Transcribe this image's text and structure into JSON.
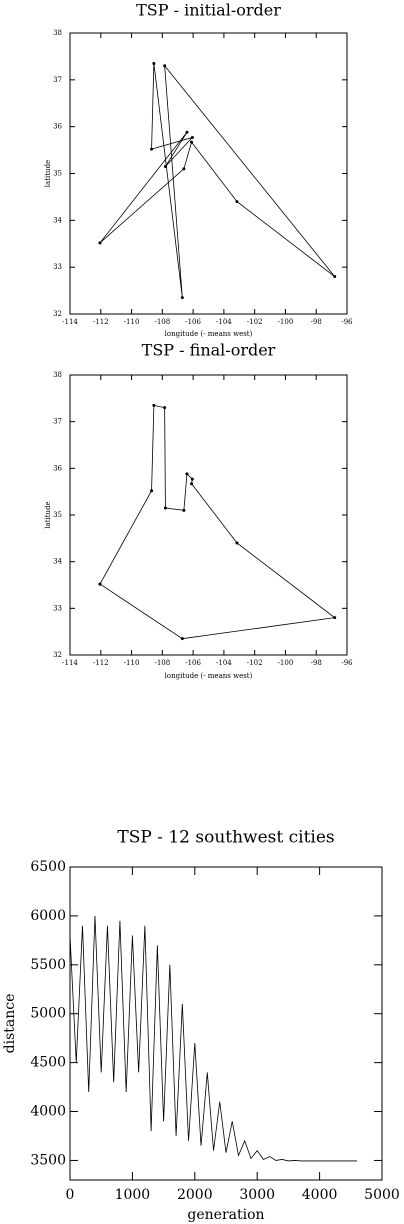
{
  "chart_data": [
    {
      "type": "line",
      "title": "TSP - initial-order",
      "x_label": "longitude (- means west)",
      "y_label": "latitude",
      "xlim": [
        -114,
        -96
      ],
      "ylim": [
        32,
        38
      ],
      "xticks": [
        -114,
        -112,
        -110,
        -108,
        -106,
        -104,
        -102,
        -100,
        -98,
        -96
      ],
      "yticks": [
        32,
        33,
        34,
        35,
        36,
        37,
        38
      ],
      "markers": true,
      "series": [
        {
          "color": "#000000",
          "x": [
            -112.05,
            -106.4,
            -107.8,
            -106.05,
            -108.7,
            -108.55,
            -106.7,
            -107.85,
            -96.8,
            -103.15,
            -106.1,
            -106.6,
            -112.05
          ],
          "values": [
            33.52,
            35.88,
            35.15,
            35.77,
            35.52,
            37.35,
            32.35,
            37.3,
            32.8,
            34.4,
            35.67,
            35.1,
            33.52
          ]
        }
      ]
    },
    {
      "type": "line",
      "title": "TSP - final-order",
      "x_label": "longitude (- means west)",
      "y_label": "latitude",
      "xlim": [
        -114,
        -96
      ],
      "ylim": [
        32,
        38
      ],
      "xticks": [
        -114,
        -112,
        -110,
        -108,
        -106,
        -104,
        -102,
        -100,
        -98,
        -96
      ],
      "yticks": [
        32,
        33,
        34,
        35,
        36,
        37,
        38
      ],
      "markers": true,
      "series": [
        {
          "color": "#000000",
          "x": [
            -112.05,
            -108.7,
            -108.55,
            -107.85,
            -107.8,
            -106.6,
            -106.4,
            -106.05,
            -106.1,
            -103.15,
            -96.8,
            -106.7,
            -112.05
          ],
          "values": [
            33.52,
            35.52,
            37.35,
            37.3,
            35.15,
            35.1,
            35.88,
            35.77,
            35.67,
            34.4,
            32.8,
            32.35,
            33.52
          ]
        }
      ]
    },
    {
      "type": "line",
      "title": "TSP - 12 southwest cities",
      "x_label": "generation",
      "y_label": "distance",
      "xlim": [
        0,
        5000
      ],
      "ylim": [
        3300,
        6500
      ],
      "xticks": [
        0,
        1000,
        2000,
        3000,
        4000,
        5000
      ],
      "yticks": [
        3500,
        4000,
        4500,
        5000,
        5500,
        6000,
        6500
      ],
      "markers": false,
      "series": [
        {
          "color": "#000000",
          "x": [
            0,
            100,
            200,
            300,
            400,
            500,
            600,
            700,
            800,
            900,
            1000,
            1100,
            1200,
            1300,
            1400,
            1500,
            1600,
            1700,
            1800,
            1900,
            2000,
            2100,
            2200,
            2300,
            2400,
            2500,
            2600,
            2700,
            2800,
            2900,
            3000,
            3100,
            3200,
            3300,
            3400,
            3500,
            3600,
            3700,
            4600
          ],
          "values": [
            5800,
            4500,
            5900,
            4200,
            6000,
            4400,
            5900,
            4300,
            5950,
            4200,
            5800,
            4400,
            5900,
            3800,
            5700,
            3900,
            5500,
            3750,
            5100,
            3700,
            4700,
            3650,
            4400,
            3600,
            4100,
            3580,
            3900,
            3550,
            3700,
            3520,
            3600,
            3510,
            3540,
            3500,
            3510,
            3495,
            3500,
            3495,
            3495
          ]
        }
      ]
    }
  ]
}
